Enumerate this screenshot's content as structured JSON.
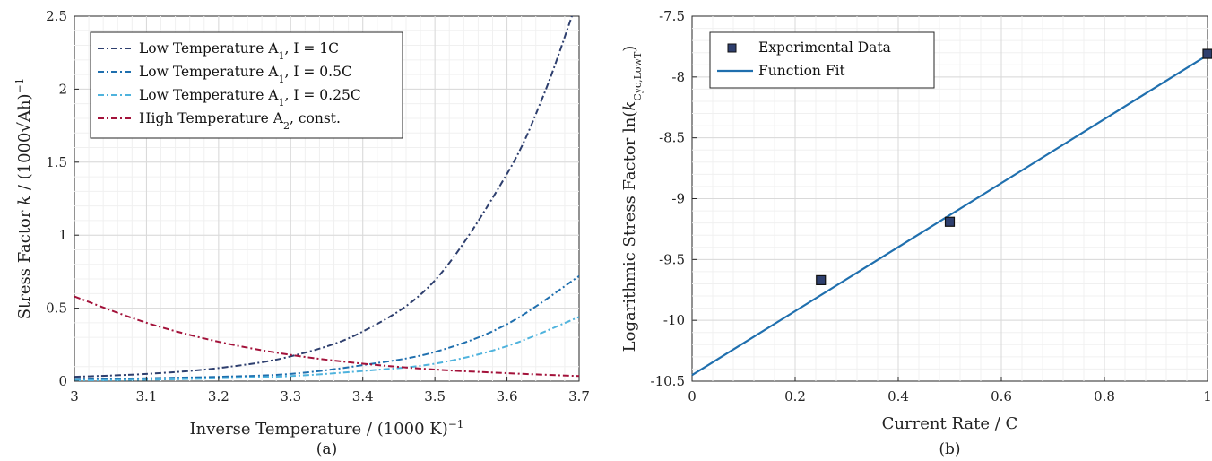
{
  "chart_data": [
    {
      "type": "line",
      "xlabel_main": "Inverse Temperature / (1000 K)",
      "xlabel_sup": "−1",
      "ylabel_main": "Stress Factor ",
      "ylabel_k": "k",
      "ylabel_rest": " / (1000√Ah)",
      "ylabel_sup": "−1",
      "caption": "(a)",
      "xlim": [
        3,
        3.7
      ],
      "ylim": [
        0,
        2.5
      ],
      "xticks": [
        "3",
        "3.1",
        "3.2",
        "3.3",
        "3.4",
        "3.5",
        "3.6",
        "3.7"
      ],
      "yticks": [
        "0",
        "0.5",
        "1",
        "1.5",
        "2",
        "2.5"
      ],
      "grid": true,
      "legend_position": "top-left",
      "series": [
        {
          "name": "Low Temperature A1, I = 1C",
          "name_main": "Low Temperature A",
          "name_sub": "1",
          "name_rest": ", I = 1C",
          "color": "#2e3f6e",
          "style": "dashdot",
          "x": [
            3.0,
            3.1,
            3.2,
            3.3,
            3.4,
            3.5,
            3.6,
            3.65,
            3.69
          ],
          "y": [
            0.03,
            0.05,
            0.09,
            0.17,
            0.34,
            0.69,
            1.42,
            1.95,
            2.5
          ]
        },
        {
          "name": "Low Temperature A1, I = 0.5C",
          "name_main": "Low Temperature A",
          "name_sub": "1",
          "name_rest": ", I = 0.5C",
          "color": "#1f6fae",
          "style": "dashdot",
          "x": [
            3.0,
            3.1,
            3.2,
            3.3,
            3.4,
            3.5,
            3.6,
            3.7
          ],
          "y": [
            0.01,
            0.02,
            0.03,
            0.05,
            0.11,
            0.2,
            0.39,
            0.72
          ]
        },
        {
          "name": "Low Temperature A1, I = 0.25C",
          "name_main": "Low Temperature A",
          "name_sub": "1",
          "name_rest": ", I = 0.25C",
          "color": "#4fb3dd",
          "style": "dashdot",
          "x": [
            3.0,
            3.1,
            3.2,
            3.3,
            3.4,
            3.5,
            3.6,
            3.7
          ],
          "y": [
            0.005,
            0.01,
            0.02,
            0.035,
            0.07,
            0.12,
            0.24,
            0.44
          ]
        },
        {
          "name": "High Temperature A2, const.",
          "name_main": "High Temperature A",
          "name_sub": "2",
          "name_rest": ", const.",
          "color": "#a3123a",
          "style": "dashdot",
          "x": [
            3.0,
            3.1,
            3.2,
            3.3,
            3.4,
            3.5,
            3.6,
            3.7
          ],
          "y": [
            0.58,
            0.4,
            0.27,
            0.18,
            0.12,
            0.08,
            0.055,
            0.035
          ]
        }
      ]
    },
    {
      "type": "scatter",
      "xlabel": "Current Rate / C",
      "ylabel_main": "Logarithmic Stress Factor ln(",
      "ylabel_k": "k",
      "ylabel_sub": "Cyc,LowT",
      "ylabel_close": ")",
      "caption": "(b)",
      "xlim": [
        0,
        1
      ],
      "ylim": [
        -10.5,
        -7.5
      ],
      "xticks": [
        "0",
        "0.2",
        "0.4",
        "0.6",
        "0.8",
        "1"
      ],
      "yticks": [
        "-10.5",
        "-10",
        "-9.5",
        "-9",
        "-8.5",
        "-8",
        "-7.5"
      ],
      "grid": true,
      "legend_position": "top-left",
      "series": [
        {
          "name": "Experimental Data",
          "marker": "square",
          "color": "#2e3f6e",
          "x": [
            0.25,
            0.5,
            1.0
          ],
          "y": [
            -9.67,
            -9.19,
            -7.81
          ]
        },
        {
          "name": "Function Fit",
          "style": "solid",
          "color": "#1f6fae",
          "x": [
            0,
            1
          ],
          "y": [
            -10.45,
            -7.82
          ]
        }
      ]
    }
  ]
}
